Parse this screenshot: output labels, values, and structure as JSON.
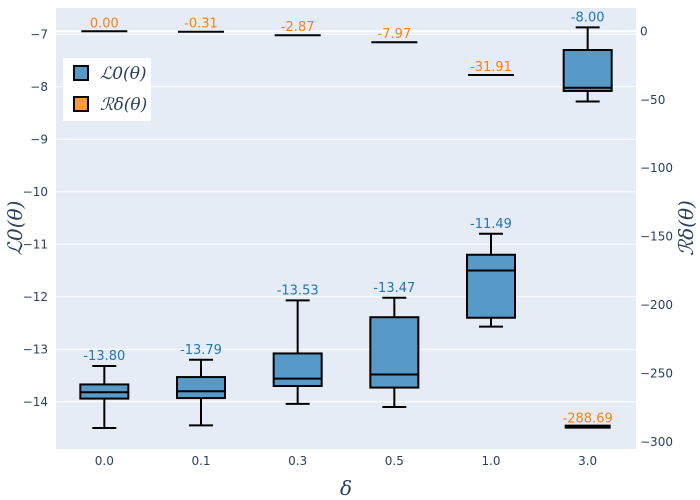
{
  "chart_data": {
    "type": "box",
    "xlabel": "δ",
    "ylabel_left": "ℒ0(θ)",
    "ylabel_right": "ℛδ(θ)",
    "categories": [
      "0.0",
      "0.1",
      "0.3",
      "0.5",
      "1.0",
      "3.0"
    ],
    "ylim_left": [
      -14.9,
      -6.5
    ],
    "ylim_right": [
      -305,
      17
    ],
    "yticks_left": [
      -14,
      -13,
      -12,
      -11,
      -10,
      -9,
      -8,
      -7
    ],
    "yticks_right": [
      0,
      -50,
      -100,
      -150,
      -200,
      -250,
      -300
    ],
    "colors": {
      "box_fill": "#5799c7",
      "loss_label": "#1f77b4",
      "risk": "#ff7f0e",
      "plot_bg": "#e5ecf6"
    },
    "legend": [
      {
        "name": "ℒ0(θ)",
        "marker": "box",
        "color": "#5799c7"
      },
      {
        "name": "ℛδ(θ)",
        "marker": "box",
        "color": "#ff7f0e"
      }
    ],
    "loss_series": {
      "name": "ℒ0(θ)",
      "boxes": [
        {
          "category": "0.0",
          "min": -14.5,
          "q1": -13.94,
          "median": -13.82,
          "q3": -13.67,
          "max": -13.32,
          "label": "-13.80"
        },
        {
          "category": "0.1",
          "min": -14.45,
          "q1": -13.93,
          "median": -13.8,
          "q3": -13.53,
          "max": -13.2,
          "label": "-13.79"
        },
        {
          "category": "0.3",
          "min": -14.04,
          "q1": -13.7,
          "median": -13.56,
          "q3": -13.08,
          "max": -12.07,
          "label": "-13.53"
        },
        {
          "category": "0.5",
          "min": -14.1,
          "q1": -13.73,
          "median": -13.48,
          "q3": -12.39,
          "max": -12.02,
          "label": "-13.47"
        },
        {
          "category": "1.0",
          "min": -12.57,
          "q1": -12.4,
          "median": -11.5,
          "q3": -11.2,
          "max": -10.8,
          "label": "-11.49"
        },
        {
          "category": "3.0",
          "min": -8.28,
          "q1": -8.08,
          "median": -8.02,
          "q3": -7.3,
          "max": -6.87,
          "label": "-8.00"
        }
      ]
    },
    "risk_series": {
      "name": "ℛδ(θ)",
      "values": [
        {
          "category": "0.0",
          "value": 0.0,
          "label": "0.00"
        },
        {
          "category": "0.1",
          "value": -0.31,
          "label": "-0.31"
        },
        {
          "category": "0.3",
          "value": -2.87,
          "label": "-2.87"
        },
        {
          "category": "0.5",
          "value": -7.97,
          "label": "-7.97"
        },
        {
          "category": "1.0",
          "value": -31.91,
          "label": "-31.91"
        },
        {
          "category": "3.0",
          "value": -288.69,
          "label": "-288.69"
        }
      ]
    }
  }
}
